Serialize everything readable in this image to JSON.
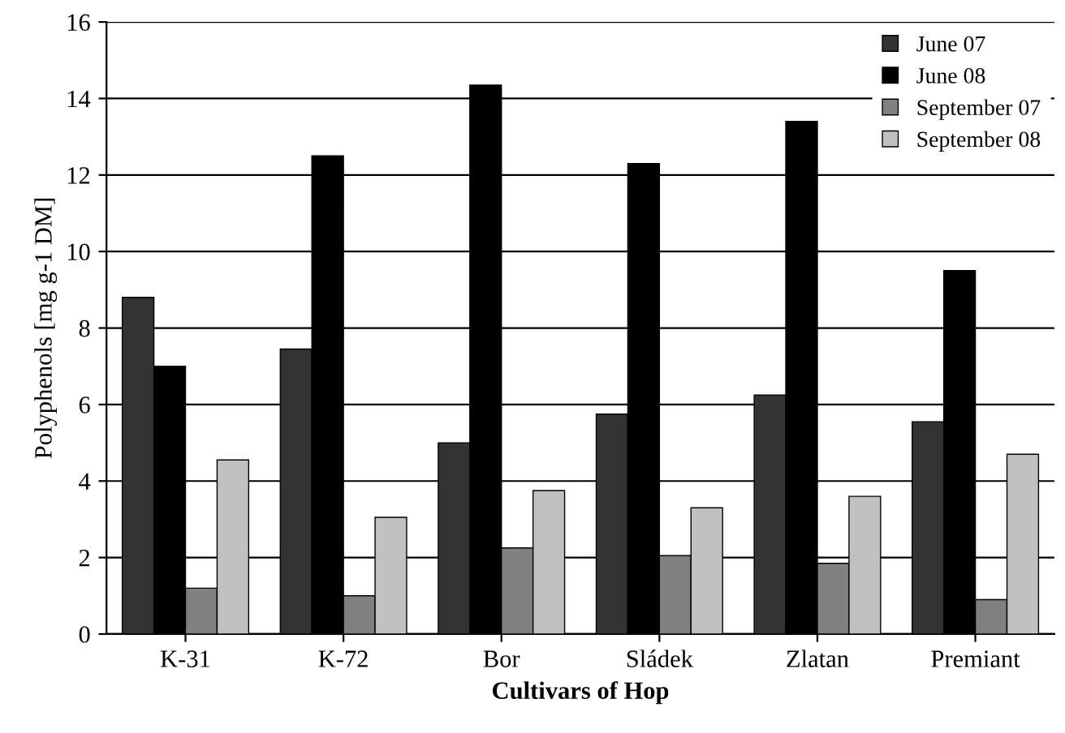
{
  "chart_data": {
    "type": "bar",
    "xlabel": "Cultivars of Hop",
    "ylabel": "Polyphenols [mg g-1 DM]",
    "categories": [
      "K-31",
      "K-72",
      "Bor",
      "Sládek",
      "Zlatan",
      "Premiant"
    ],
    "series": [
      {
        "name": "June 07",
        "color": "#333333",
        "values": [
          8.8,
          7.45,
          5.0,
          5.75,
          6.25,
          5.55
        ]
      },
      {
        "name": "June 08",
        "color": "#000000",
        "values": [
          7.0,
          12.5,
          14.35,
          12.3,
          13.4,
          9.5
        ]
      },
      {
        "name": "September 07",
        "color": "#808080",
        "values": [
          1.2,
          1.0,
          2.25,
          2.05,
          1.85,
          0.9
        ]
      },
      {
        "name": "September 08",
        "color": "#c0c0c0",
        "values": [
          4.55,
          3.05,
          3.75,
          3.3,
          3.6,
          4.7
        ]
      }
    ],
    "ylim": [
      0,
      16
    ],
    "yticks": [
      0,
      2,
      4,
      6,
      8,
      10,
      12,
      14,
      16
    ],
    "grid": "y",
    "legend": "top right"
  }
}
